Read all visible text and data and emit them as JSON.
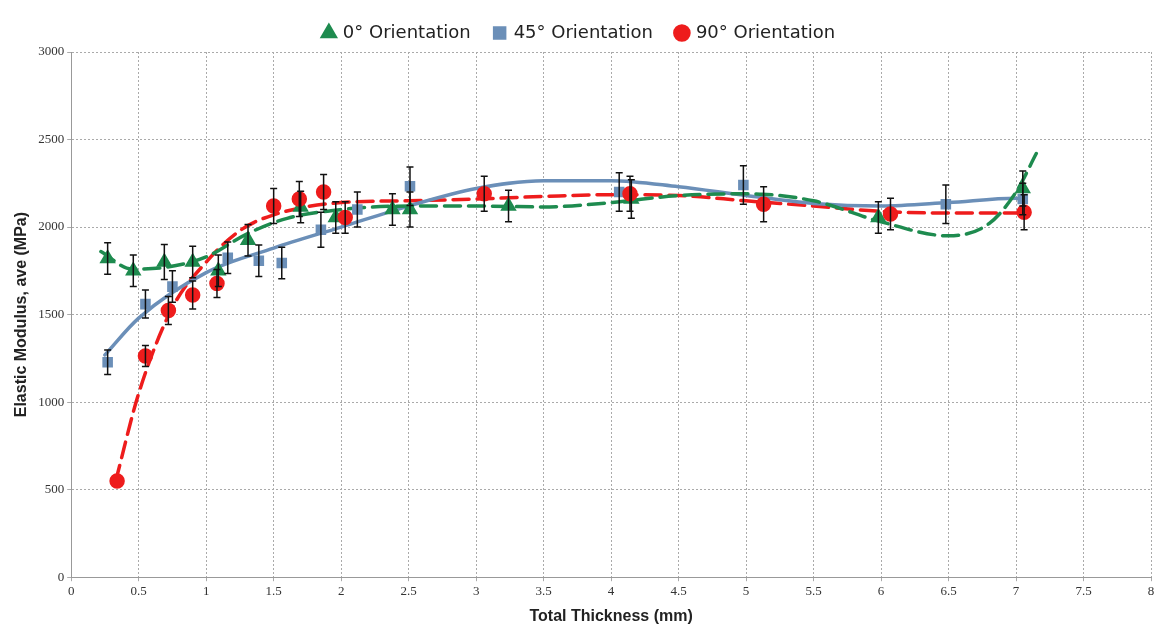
{
  "chart_data": {
    "type": "scatter",
    "xlabel": "Total Thickness (mm)",
    "ylabel": "Elastic Modulus, ave (MPa)",
    "xlim": [
      0,
      8
    ],
    "xticks": [
      0,
      0.5,
      1,
      1.5,
      2,
      2.5,
      3,
      3.5,
      4,
      4.5,
      5,
      5.5,
      6,
      6.5,
      7,
      7.5,
      8
    ],
    "ylim": [
      0,
      3000
    ],
    "yticks": [
      0,
      500,
      1000,
      1500,
      2000,
      2500,
      3000
    ],
    "grid": true,
    "legend": "top",
    "series": [
      {
        "name": "0° Orientation",
        "type": "scatter",
        "marker": "triangle",
        "color": "#1e8b4f",
        "x": [
          0.27,
          0.46,
          0.69,
          0.9,
          1.09,
          1.31,
          1.7,
          1.96,
          2.38,
          2.51,
          3.24,
          4.15,
          5.98,
          7.05
        ],
        "values": [
          1820,
          1750,
          1800,
          1800,
          1750,
          1925,
          2115,
          2055,
          2100,
          2100,
          2120,
          2160,
          2055,
          2220
        ],
        "errors": [
          90,
          90,
          100,
          90,
          90,
          90,
          90,
          90,
          90,
          100,
          90,
          110,
          90,
          100
        ]
      },
      {
        "name": "45° Orientation",
        "type": "scatter",
        "marker": "square",
        "color": "#6b8fb8",
        "x": [
          0.27,
          0.55,
          0.75,
          1.16,
          1.39,
          1.56,
          1.85,
          2.12,
          2.51,
          4.06,
          4.98,
          6.48,
          7.05
        ],
        "values": [
          1228,
          1560,
          1660,
          1825,
          1808,
          1795,
          1985,
          2100,
          2233,
          2200,
          2240,
          2130,
          2160
        ],
        "errors": [
          70,
          80,
          90,
          90,
          90,
          90,
          100,
          100,
          110,
          110,
          110,
          110,
          90
        ]
      },
      {
        "name": "90° Orientation",
        "type": "scatter",
        "marker": "circle",
        "color": "#ee1c1c",
        "x": [
          0.34,
          0.55,
          0.72,
          0.9,
          1.08,
          1.5,
          1.69,
          1.87,
          2.03,
          3.06,
          4.14,
          5.13,
          6.07,
          7.06
        ],
        "values": [
          550,
          1264,
          1524,
          1612,
          1678,
          2120,
          2160,
          2200,
          2055,
          2190,
          2190,
          2130,
          2075,
          2085
        ],
        "errors": [
          null,
          60,
          80,
          80,
          80,
          100,
          100,
          100,
          90,
          100,
          100,
          100,
          90,
          100
        ]
      },
      {
        "type": "line",
        "color": "#1e8b4f",
        "line_style": "dashed",
        "marker": "none",
        "x": [
          0.22,
          0.45,
          0.7,
          1.0,
          1.3,
          1.6,
          2,
          2.5,
          3,
          3.5,
          4,
          4.5,
          5,
          5.5,
          6,
          6.5,
          6.8,
          7,
          7.15
        ],
        "values": [
          1860,
          1760,
          1770,
          1830,
          1960,
          2050,
          2100,
          2120,
          2120,
          2115,
          2140,
          2180,
          2190,
          2150,
          2030,
          1950,
          2020,
          2200,
          2420
        ]
      },
      {
        "type": "line",
        "color": "#6b8fb8",
        "line_style": "solid",
        "marker": "none",
        "x": [
          0.25,
          0.5,
          1,
          1.5,
          2,
          2.5,
          3,
          3.5,
          4,
          4.5,
          5,
          5.5,
          6,
          6.5,
          7,
          7.05
        ],
        "values": [
          1270,
          1480,
          1740,
          1880,
          2000,
          2120,
          2220,
          2265,
          2265,
          2230,
          2180,
          2135,
          2120,
          2140,
          2165,
          2150
        ]
      },
      {
        "type": "line",
        "color": "#ee1c1c",
        "line_style": "dashed",
        "marker": "none",
        "x": [
          0.33,
          0.5,
          0.75,
          1,
          1.25,
          1.5,
          2,
          2.5,
          3,
          3.5,
          4,
          4.5,
          5,
          5.5,
          6,
          6.5,
          7,
          7.1
        ],
        "values": [
          550,
          1050,
          1540,
          1800,
          1980,
          2070,
          2140,
          2150,
          2160,
          2175,
          2185,
          2180,
          2150,
          2120,
          2090,
          2080,
          2080,
          2080
        ]
      }
    ]
  }
}
